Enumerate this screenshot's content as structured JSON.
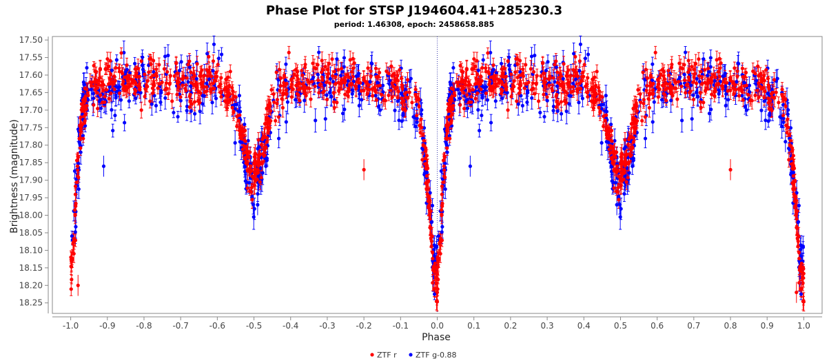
{
  "chart_data": {
    "type": "scatter",
    "title": "Phase Plot for STSP J194604.41+285230.3",
    "subtitle": "period: 1.46308, epoch: 2458658.885",
    "xlabel": "Phase",
    "ylabel": "Brightness (magnitude)",
    "xlim": [
      -1.05,
      1.05
    ],
    "ylim": [
      18.28,
      17.49
    ],
    "y_inverted": true,
    "x_ticks": [
      "-1.0",
      "-0.9",
      "-0.8",
      "-0.7",
      "-0.6",
      "-0.5",
      "-0.4",
      "-0.3",
      "-0.2",
      "-0.1",
      "0.0",
      "0.1",
      "0.2",
      "0.3",
      "0.4",
      "0.5",
      "0.6",
      "0.7",
      "0.8",
      "0.9",
      "1.0"
    ],
    "y_ticks": [
      "17.50",
      "17.55",
      "17.60",
      "17.65",
      "17.70",
      "17.75",
      "17.80",
      "17.85",
      "17.90",
      "17.95",
      "18.00",
      "18.05",
      "18.10",
      "18.15",
      "18.20",
      "18.25"
    ],
    "grid": false,
    "reference_line_x": 0.0,
    "legend_position": "bottom-center",
    "series": [
      {
        "name": "ZTF r",
        "color": "#ff0000",
        "curve": {
          "phase": [
            0.0,
            0.01,
            0.02,
            0.03,
            0.05,
            0.1,
            0.2,
            0.3,
            0.4,
            0.44,
            0.46,
            0.48,
            0.5,
            0.52,
            0.54,
            0.56,
            0.6,
            0.7,
            0.8,
            0.9,
            0.95,
            0.97,
            0.98,
            0.99,
            1.0
          ],
          "magnitude": [
            18.2,
            18.05,
            17.85,
            17.72,
            17.64,
            17.62,
            17.61,
            17.62,
            17.62,
            17.66,
            17.73,
            17.83,
            17.89,
            17.83,
            17.72,
            17.65,
            17.62,
            17.62,
            17.62,
            17.63,
            17.7,
            17.85,
            18.02,
            18.15,
            18.2
          ]
        },
        "representative_points": [
          [
            -0.98,
            18.2
          ],
          [
            -0.5,
            17.89
          ],
          [
            -0.2,
            17.87
          ],
          [
            0.0,
            18.22
          ],
          [
            0.5,
            17.9
          ],
          [
            0.8,
            17.87
          ],
          [
            0.98,
            18.22
          ]
        ]
      },
      {
        "name": "ZTF g-0.88",
        "color": "#0000ff",
        "curve": {
          "phase": [
            0.0,
            0.01,
            0.02,
            0.03,
            0.05,
            0.1,
            0.2,
            0.3,
            0.4,
            0.44,
            0.46,
            0.48,
            0.5,
            0.52,
            0.54,
            0.56,
            0.6,
            0.7,
            0.8,
            0.9,
            0.95,
            0.97,
            0.98,
            0.99,
            1.0
          ],
          "magnitude": [
            18.15,
            18.0,
            17.85,
            17.73,
            17.66,
            17.64,
            17.63,
            17.64,
            17.64,
            17.68,
            17.76,
            17.86,
            17.93,
            17.86,
            17.76,
            17.68,
            17.64,
            17.63,
            17.64,
            17.65,
            17.72,
            17.86,
            18.0,
            18.12,
            18.15
          ]
        },
        "representative_points": [
          [
            -0.91,
            17.86
          ],
          [
            -0.49,
            17.97
          ],
          [
            0.09,
            17.86
          ],
          [
            0.49,
            17.97
          ],
          [
            0.95,
            17.79
          ]
        ]
      }
    ]
  }
}
